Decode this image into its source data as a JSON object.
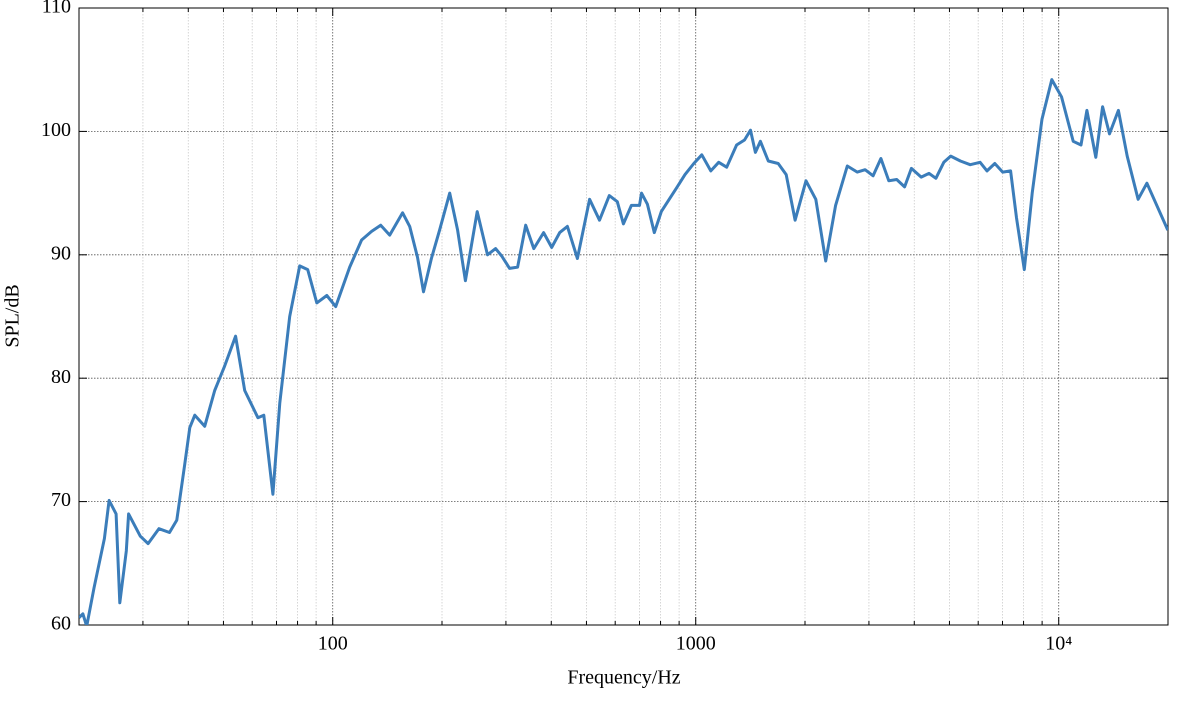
{
  "chart_data": {
    "type": "line",
    "xlabel": "Frequency/Hz",
    "ylabel": "SPL/dB",
    "xscale": "log",
    "xlim": [
      20,
      20000
    ],
    "ylim": [
      60,
      110
    ],
    "xticks": [
      100,
      1000,
      {
        "value": 10000,
        "label": "10⁴"
      }
    ],
    "xminorticks": [
      30,
      40,
      50,
      60,
      70,
      80,
      90,
      200,
      300,
      400,
      500,
      600,
      700,
      800,
      900,
      2000,
      3000,
      4000,
      5000,
      6000,
      7000,
      8000,
      9000
    ],
    "yticks": [
      60,
      70,
      80,
      90,
      100,
      110
    ],
    "grid": true,
    "series": [
      {
        "name": "SPL",
        "color": "#3b7dba",
        "x": [
          20,
          20.5,
          21,
          22,
          23.5,
          24.2,
          25.3,
          25.9,
          27,
          27.4,
          29.5,
          31,
          33.2,
          35.5,
          37.2,
          39.1,
          40.4,
          41.7,
          44.4,
          47.3,
          50.4,
          54,
          57.2,
          62.2,
          64.6,
          68.4,
          71.5,
          76.1,
          81.1,
          85.3,
          90.4,
          96.3,
          101.9,
          111.4,
          120.1,
          128,
          135.6,
          143.5,
          155.8,
          162.9,
          171.2,
          177.9,
          187,
          197,
          210,
          220.8,
          232,
          250,
          267,
          281,
          292,
          307,
          323,
          340,
          358,
          381,
          401,
          422,
          443,
          472,
          510,
          543,
          578,
          608,
          632,
          665,
          700,
          709,
          736,
          769,
          804,
          845,
          889,
          934,
          988,
          1039,
          1100,
          1157,
          1217,
          1296,
          1363,
          1415,
          1460,
          1507,
          1585,
          1687,
          1775,
          1878,
          2013,
          2142,
          2281,
          2428,
          2616,
          2786,
          2929,
          3080,
          3237,
          3403,
          3578,
          3761,
          3928,
          4179,
          4393,
          4589,
          4824,
          5039,
          5361,
          5705,
          6072,
          6343,
          6668,
          7010,
          7367,
          7648,
          8040,
          8453,
          8994,
          9570,
          10180,
          10960,
          11520,
          11960,
          12650,
          13210,
          13800,
          14600,
          15440,
          16540,
          17500,
          19970
        ],
        "values": [
          60.6,
          60.9,
          59.9,
          63,
          67,
          70.1,
          69,
          61.8,
          66,
          69,
          67.2,
          66.6,
          67.8,
          67.5,
          68.5,
          73,
          76,
          77,
          76.1,
          79,
          81,
          83.4,
          79,
          76.8,
          77,
          70.6,
          78,
          85,
          89.1,
          88.8,
          86.1,
          86.7,
          85.8,
          89,
          91.2,
          91.9,
          92.4,
          91.6,
          93.4,
          92.3,
          89.8,
          87,
          89.7,
          92,
          95,
          92,
          87.9,
          93.5,
          90,
          90.5,
          89.9,
          88.9,
          89,
          92.4,
          90.5,
          91.8,
          90.6,
          91.8,
          92.3,
          89.7,
          94.5,
          92.8,
          94.8,
          94.3,
          92.5,
          94,
          94,
          95,
          94.1,
          91.8,
          93.5,
          94.5,
          95.5,
          96.5,
          97.4,
          98.1,
          96.8,
          97.5,
          97.1,
          98.9,
          99.3,
          100.1,
          98.3,
          99.2,
          97.6,
          97.4,
          96.5,
          92.8,
          96,
          94.5,
          89.5,
          94,
          97.2,
          96.7,
          96.9,
          96.4,
          97.8,
          96,
          96.1,
          95.5,
          97,
          96.3,
          96.6,
          96.2,
          97.5,
          98,
          97.6,
          97.3,
          97.5,
          96.8,
          97.4,
          96.7,
          96.8,
          93,
          88.8,
          95,
          101,
          104.2,
          102.8,
          99.2,
          98.9,
          101.7,
          97.9,
          102,
          99.8,
          101.7,
          98,
          94.5,
          95.8,
          92
        ]
      }
    ]
  }
}
